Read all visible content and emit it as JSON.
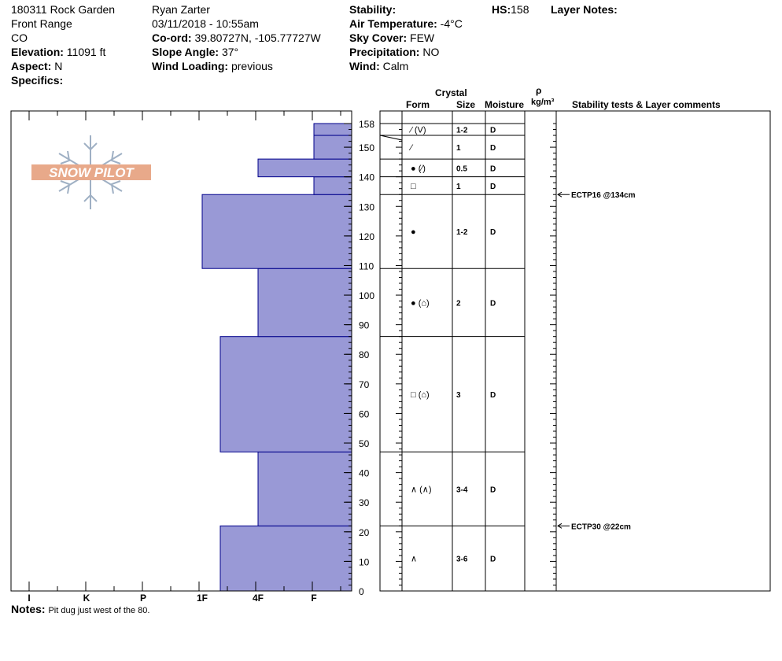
{
  "site": {
    "name": "180311 Rock Garden",
    "range": "Front Range",
    "state": "CO",
    "elevation_label": "Elevation:",
    "elevation": "11091 ft",
    "aspect_label": "Aspect:",
    "aspect": "N",
    "specifics_label": "Specifics:"
  },
  "observer": {
    "name": "Ryan Zarter",
    "datetime": "03/11/2018 - 10:55am",
    "coord_label": "Co-ord:",
    "coord": "39.80727N, -105.77727W",
    "slope_label": "Slope Angle:",
    "slope": "37°",
    "wind_loading_label": "Wind Loading:",
    "wind_loading": "previous"
  },
  "conditions": {
    "stability_label": "Stability:",
    "air_temp_label": "Air Temperature:",
    "air_temp": "-4°C",
    "sky_label": "Sky Cover:",
    "sky": "FEW",
    "precip_label": "Precipitation:",
    "precip": "NO",
    "wind_label": "Wind:",
    "wind": "Calm"
  },
  "hs_label": "HS:",
  "hs": "158",
  "layer_notes_label": "Layer Notes:",
  "logo_text": "SNOW PILOT",
  "notes_label": "Notes:",
  "notes": "Pit dug just west of the 80.",
  "columns": {
    "crystal": "Crystal",
    "form": "Form",
    "size": "Size",
    "moisture": "Moisture",
    "rho": "ρ",
    "density_unit": "kg/m³",
    "stability": "Stability tests & Layer comments"
  },
  "colors": {
    "bar_fill": "#9999d6",
    "bar_stroke": "#00008b",
    "logo": "#e8a98a",
    "flake": "#9fb0c4"
  },
  "chart_data": {
    "type": "bar",
    "orientation": "horizontal",
    "y_axis": {
      "range": [
        0,
        158
      ],
      "ticks": [
        0,
        10,
        20,
        30,
        40,
        50,
        60,
        70,
        80,
        90,
        100,
        110,
        120,
        130,
        140,
        150,
        158
      ]
    },
    "x_axis": {
      "categories": [
        "I",
        "K",
        "P",
        "1F",
        "4F",
        "F"
      ]
    },
    "hardness_layers": [
      {
        "bottom": 0,
        "top": 22,
        "hardness": "1F-"
      },
      {
        "bottom": 22,
        "top": 47,
        "hardness": "4F"
      },
      {
        "bottom": 47,
        "top": 86,
        "hardness": "1F-"
      },
      {
        "bottom": 86,
        "top": 109,
        "hardness": "4F"
      },
      {
        "bottom": 109,
        "top": 134,
        "hardness": "1F"
      },
      {
        "bottom": 134,
        "top": 140,
        "hardness": "F"
      },
      {
        "bottom": 140,
        "top": 146,
        "hardness": "4F"
      },
      {
        "bottom": 146,
        "top": 154,
        "hardness": "F"
      },
      {
        "bottom": 154,
        "top": 158,
        "hardness": "F"
      }
    ],
    "layer_table": [
      {
        "bottom": 154,
        "top": 158,
        "form": "⁄ (V)",
        "size": "1-2",
        "moisture": "D"
      },
      {
        "bottom": 146,
        "top": 154,
        "form": "⁄",
        "size": "1",
        "moisture": "D"
      },
      {
        "bottom": 140,
        "top": 146,
        "form": "● (⁄)",
        "size": "0.5",
        "moisture": "D"
      },
      {
        "bottom": 134,
        "top": 140,
        "form": "□",
        "size": "1",
        "moisture": "D"
      },
      {
        "bottom": 109,
        "top": 134,
        "form": "●",
        "size": "1-2",
        "moisture": "D"
      },
      {
        "bottom": 86,
        "top": 109,
        "form": "● (⌂)",
        "size": "2",
        "moisture": "D"
      },
      {
        "bottom": 47,
        "top": 86,
        "form": "□ (⌂)",
        "size": "3",
        "moisture": "D"
      },
      {
        "bottom": 22,
        "top": 47,
        "form": "∧ (∧)",
        "size": "3-4",
        "moisture": "D"
      },
      {
        "bottom": 0,
        "top": 22,
        "form": "∧",
        "size": "3-6",
        "moisture": "D"
      }
    ],
    "stability_tests": [
      {
        "depth": 134,
        "label": "ECTP16 @134cm"
      },
      {
        "depth": 22,
        "label": "ECTP30 @22cm"
      }
    ]
  }
}
